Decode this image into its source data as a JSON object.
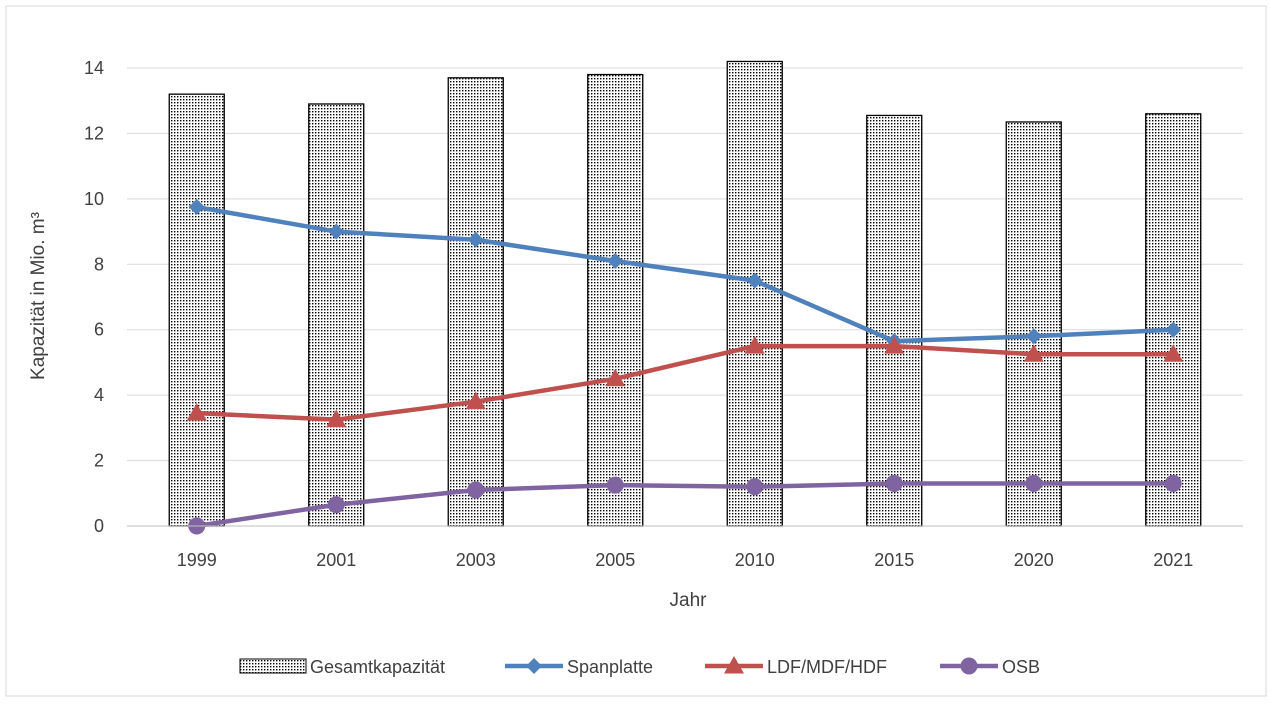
{
  "chart_data": {
    "type": "bar",
    "categories": [
      "1999",
      "2001",
      "2003",
      "2005",
      "2010",
      "2015",
      "2020",
      "2021"
    ],
    "xlabel": "Jahr",
    "ylabel": "Kapazität in Mio. m³",
    "ylim": [
      0,
      14
    ],
    "yticks": [
      0,
      2,
      4,
      6,
      8,
      10,
      12,
      14
    ],
    "grid": true,
    "legend_position": "bottom",
    "bars": {
      "name": "Gesamtkapazität",
      "values": [
        13.2,
        12.9,
        13.7,
        13.8,
        14.2,
        12.55,
        12.35,
        12.6
      ],
      "fill": "dotted",
      "color": "#000000"
    },
    "series": [
      {
        "name": "Spanplatte",
        "type": "line",
        "marker": "diamond",
        "color": "#4F81BD",
        "values": [
          9.75,
          9.0,
          8.75,
          8.1,
          7.5,
          5.65,
          5.8,
          6.0
        ]
      },
      {
        "name": "LDF/MDF/HDF",
        "type": "line",
        "marker": "triangle",
        "color": "#C0504D",
        "values": [
          3.45,
          3.25,
          3.8,
          4.5,
          5.5,
          5.5,
          5.25,
          5.25
        ]
      },
      {
        "name": "OSB",
        "type": "line",
        "marker": "circle",
        "color": "#8064A2",
        "values": [
          0.0,
          0.65,
          1.1,
          1.25,
          1.2,
          1.3,
          1.3,
          1.3
        ]
      }
    ]
  }
}
